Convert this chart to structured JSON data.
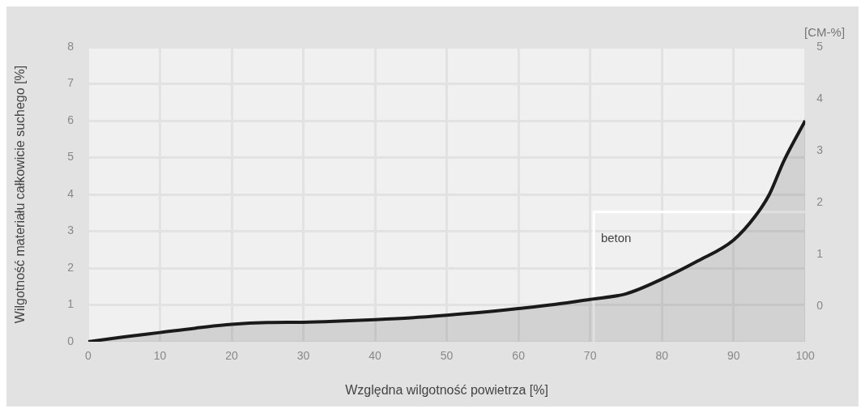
{
  "chart_data": {
    "type": "area",
    "xlabel": "Względna wilgotność powietrza [%]",
    "ylabel": "Wilgotność materiału całkowicie suchego [%]",
    "y2label": "[CM-%]",
    "xlim": [
      0,
      100
    ],
    "xticks": [
      0,
      10,
      20,
      30,
      40,
      50,
      60,
      70,
      80,
      90,
      100
    ],
    "ylim": [
      0,
      8
    ],
    "yticks": [
      0,
      1,
      2,
      3,
      4,
      5,
      6,
      7,
      8
    ],
    "y2lim": [
      -0.68,
      5
    ],
    "y2ticks": [
      0,
      1,
      2,
      3,
      4,
      5
    ],
    "grid": true,
    "legend": false,
    "annotations": [
      "beton"
    ],
    "series": [
      {
        "color": "#1a1a1a",
        "x": [
          0,
          5,
          10,
          15,
          20,
          25,
          30,
          35,
          40,
          45,
          50,
          55,
          60,
          65,
          70,
          75,
          80,
          85,
          90,
          93,
          95,
          97,
          100
        ],
        "values": [
          0,
          0.13,
          0.25,
          0.37,
          0.47,
          0.52,
          0.53,
          0.56,
          0.6,
          0.65,
          0.72,
          0.8,
          0.9,
          1.01,
          1.15,
          1.3,
          1.7,
          2.19,
          2.76,
          3.4,
          4.0,
          4.9,
          6.0
        ]
      },
      {
        "type": "line",
        "color": "#ffffff",
        "x": [
          70.5,
          70.5,
          100
        ],
        "values": [
          0,
          3.52,
          3.52
        ]
      }
    ]
  }
}
